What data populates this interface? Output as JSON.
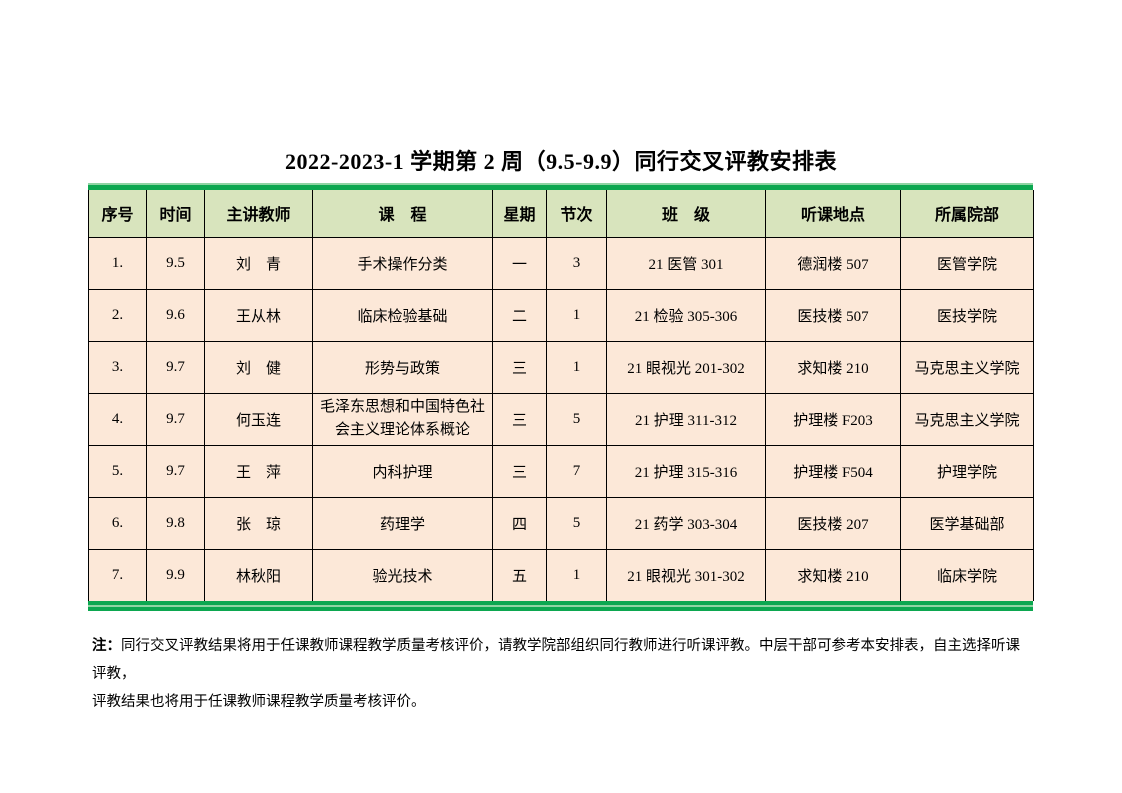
{
  "page": {
    "title": "2022-2023-1 学期第 2 周（9.5-9.9）同行交叉评教安排表"
  },
  "table": {
    "headers": [
      "序号",
      "时间",
      "主讲教师",
      "课　程",
      "星期",
      "节次",
      "班　级",
      "听课地点",
      "所属院部"
    ],
    "rows": [
      [
        "1.",
        "9.5",
        "刘　青",
        "手术操作分类",
        "一",
        "3",
        "21 医管 301",
        "德润楼 507",
        "医管学院"
      ],
      [
        "2.",
        "9.6",
        "王从林",
        "临床检验基础",
        "二",
        "1",
        "21 检验 305-306",
        "医技楼 507",
        "医技学院"
      ],
      [
        "3.",
        "9.7",
        "刘　健",
        "形势与政策",
        "三",
        "1",
        "21 眼视光 201-302",
        "求知楼 210",
        "马克思主义学院"
      ],
      [
        "4.",
        "9.7",
        "何玉连",
        "毛泽东思想和中国特色社会主义理论体系概论",
        "三",
        "5",
        "21 护理 311-312",
        "护理楼 F203",
        "马克思主义学院"
      ],
      [
        "5.",
        "9.7",
        "王　萍",
        "内科护理",
        "三",
        "7",
        "21 护理 315-316",
        "护理楼 F504",
        "护理学院"
      ],
      [
        "6.",
        "9.8",
        "张　琼",
        "药理学",
        "四",
        "5",
        "21 药学 303-304",
        "医技楼 207",
        "医学基础部"
      ],
      [
        "7.",
        "9.9",
        "林秋阳",
        "验光技术",
        "五",
        "1",
        "21 眼视光 301-302",
        "求知楼 210",
        "临床学院"
      ]
    ]
  },
  "note": {
    "prefix": "注：",
    "line1": "同行交叉评教结果将用于任课教师课程教学质量考核评价，请教学院部组织同行教师进行听课评教。中层干部可参考本安排表，自主选择听课评教，",
    "line2": "评教结果也将用于任课教师课程教学质量考核评价。"
  },
  "colors": {
    "header_bg": "#d8e4bd",
    "row_bg": "#fce8d8",
    "accent_green": "#0ca750",
    "accent_green_light": "#8fd4a3",
    "border": "#000000"
  }
}
